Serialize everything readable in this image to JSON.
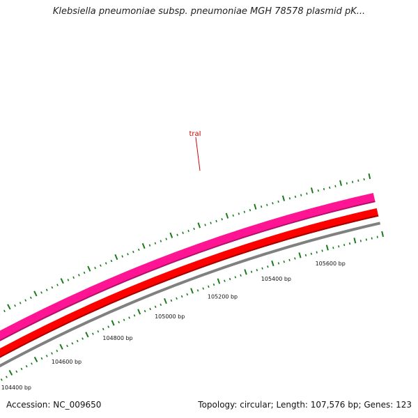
{
  "title": "Klebsiella pneumoniae subsp. pneumoniae MGH 78578 plasmid pK...",
  "footer": {
    "accession": "Accession: NC_009650",
    "summary": "Topology: circular; Length: 107,576 bp; Genes: 123"
  },
  "gene_label": {
    "name": "traI",
    "color": "#cc0000"
  },
  "tracks": [
    {
      "color": "#ff1493"
    },
    {
      "color": "#ff0000"
    },
    {
      "color": "#808080"
    }
  ],
  "tick_color": "#1a7a1a",
  "scale_ticks": [
    {
      "bp": 104400,
      "label": "104400 bp"
    },
    {
      "bp": 104600,
      "label": "104600 bp"
    },
    {
      "bp": 104800,
      "label": "104800 bp"
    },
    {
      "bp": 105000,
      "label": "105000 bp"
    },
    {
      "bp": 105200,
      "label": "105200 bp"
    },
    {
      "bp": 105400,
      "label": "105400 bp"
    },
    {
      "bp": 105600,
      "label": "105600 bp"
    }
  ]
}
